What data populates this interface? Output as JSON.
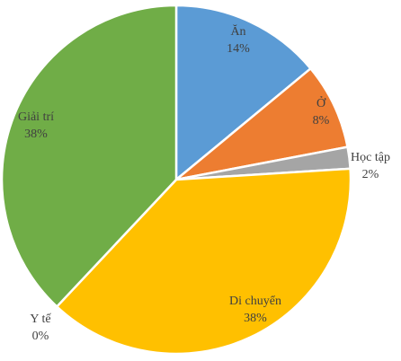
{
  "chart_data": {
    "type": "pie",
    "categories": [
      "Ăn",
      "Ở",
      "Học tập",
      "Di chuyển",
      "Y tế",
      "Giải trí"
    ],
    "values": [
      14,
      8,
      2,
      38,
      0,
      38
    ],
    "value_labels": [
      "14%",
      "8%",
      "2%",
      "38%",
      "0%",
      "38%"
    ],
    "colors": [
      "#5b9bd5",
      "#ed7d31",
      "#a5a5a5",
      "#ffc000",
      "#4472c4",
      "#70ad47"
    ]
  }
}
